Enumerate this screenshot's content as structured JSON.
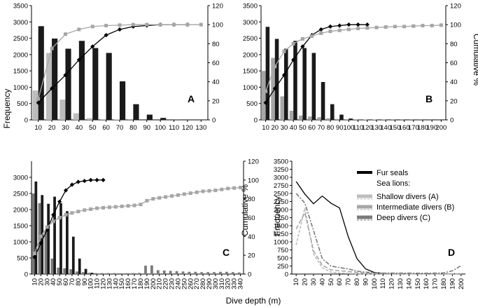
{
  "figure": {
    "shared_xlabel": "Dive depth (m)",
    "shared_ylabel_left": "Frequency",
    "shared_ylabel_right": "Cumulative %"
  },
  "legend": {
    "fur_seals": "Fur seals",
    "sea_lions": "Sea lions:",
    "shallow": "Shallow divers (A)",
    "intermediate": "Intermediate divers (B)",
    "deep": "Deep divers (C)"
  },
  "colors": {
    "fur": "#1a1a1a",
    "sea_lion_A": "#bdbdbd",
    "sea_lion_B": "#a6a6a6",
    "sea_lion_C": "#7a7a7a",
    "fur_cum": "#000000",
    "sl_cum": "#a6a6a6"
  },
  "chart_data": [
    {
      "panel": "A",
      "type": "bar",
      "categories": [
        "10",
        "20",
        "30",
        "40",
        "50",
        "60",
        "70",
        "80",
        "90",
        "100",
        "110",
        "120",
        "130"
      ],
      "series": [
        {
          "name": "Fur seals",
          "values": [
            2870,
            2490,
            2180,
            2420,
            2200,
            2050,
            1180,
            480,
            160,
            60,
            10,
            0,
            0
          ]
        },
        {
          "name": "Sea lions (shallow divers A)",
          "values": [
            900,
            2050,
            620,
            200,
            50,
            20,
            10,
            5,
            0,
            0,
            0,
            0,
            0
          ]
        }
      ],
      "cumulative": [
        {
          "name": "Fur seals cumulative %",
          "values": [
            18,
            33,
            47,
            63,
            77,
            89,
            95,
            98,
            99,
            100,
            100,
            100
          ]
        },
        {
          "name": "Sea lions cumulative %",
          "values": [
            22,
            75,
            90,
            95,
            98,
            99,
            99.5,
            100,
            100,
            100,
            100,
            100,
            100
          ]
        }
      ],
      "ylim_left": [
        0,
        3500
      ],
      "yticks_left": [
        0,
        500,
        1000,
        1500,
        2000,
        2500,
        3000,
        3500
      ],
      "ylim_right": [
        0,
        120
      ],
      "yticks_right": [
        0,
        20,
        40,
        60,
        80,
        100,
        120
      ],
      "ylabel_left": "Frequency",
      "ylabel_right": ""
    },
    {
      "panel": "B",
      "type": "bar",
      "categories": [
        "10",
        "20",
        "30",
        "40",
        "50",
        "60",
        "70",
        "80",
        "90",
        "100",
        "110",
        "120",
        "130",
        "140",
        "150",
        "160",
        "170",
        "180",
        "190",
        "200"
      ],
      "series": [
        {
          "name": "Fur seals",
          "values": [
            2850,
            2480,
            2180,
            2420,
            2200,
            2050,
            1160,
            480,
            160,
            40,
            10,
            0,
            0,
            0,
            0,
            0,
            0,
            0,
            0,
            0
          ]
        },
        {
          "name": "Sea lions (intermediate divers B)",
          "values": [
            1500,
            1900,
            720,
            280,
            130,
            100,
            80,
            50,
            30,
            20,
            15,
            10,
            10,
            8,
            6,
            5,
            4,
            3,
            2,
            1
          ]
        }
      ],
      "cumulative": [
        {
          "name": "Fur seals cumulative %",
          "values": [
            18,
            33,
            47,
            63,
            77,
            89,
            95,
            98,
            99,
            100,
            100,
            100
          ]
        },
        {
          "name": "Sea lions cumulative %",
          "values": [
            30,
            56,
            72,
            80,
            85,
            88,
            91,
            93,
            94,
            95,
            96,
            96.5,
            97,
            97.5,
            98,
            98,
            98.5,
            99,
            99,
            99.5
          ]
        }
      ],
      "ylim_left": [
        0,
        3500
      ],
      "yticks_left": [
        0,
        500,
        1000,
        1500,
        2000,
        2500,
        3000,
        3500
      ],
      "ylim_right": [
        0,
        120
      ],
      "yticks_right": [
        0,
        20,
        40,
        60,
        80,
        100,
        120
      ],
      "ylabel_left": "",
      "ylabel_right": "Cumulative %"
    },
    {
      "panel": "C",
      "type": "bar",
      "categories": [
        "10",
        "20",
        "30",
        "40",
        "50",
        "60",
        "70",
        "80",
        "90",
        "100",
        "110",
        "120",
        "130",
        "140",
        "150",
        "160",
        "170",
        "180",
        "190",
        "200",
        "210",
        "220",
        "230",
        "240",
        "250",
        "260",
        "270",
        "280",
        "290",
        "300",
        "310",
        "320",
        "330",
        "340"
      ],
      "series": [
        {
          "name": "Fur seals",
          "values": [
            2870,
            2450,
            2180,
            2400,
            2200,
            1950,
            1160,
            480,
            160,
            40,
            10,
            5,
            0,
            0,
            0,
            0,
            0,
            0,
            0,
            0,
            0,
            0,
            0,
            0,
            0,
            0,
            0,
            0,
            0,
            0,
            0,
            0,
            0,
            0
          ]
        },
        {
          "name": "Sea lions (deep divers C)",
          "values": [
            2500,
            2200,
            1350,
            480,
            200,
            180,
            150,
            80,
            60,
            40,
            30,
            30,
            30,
            30,
            25,
            25,
            30,
            35,
            260,
            270,
            120,
            110,
            100,
            90,
            80,
            70,
            70,
            60,
            60,
            60,
            70,
            70,
            60,
            50
          ]
        }
      ],
      "cumulative": [
        {
          "name": "Fur seals cumulative %",
          "values": [
            18,
            33,
            47,
            63,
            77,
            89,
            95,
            98,
            99,
            100,
            100,
            100
          ]
        },
        {
          "name": "Sea lions cumulative %",
          "values": [
            22,
            40,
            50,
            56,
            60,
            63,
            65,
            66.5,
            68,
            69,
            70,
            70.5,
            71,
            71.5,
            72,
            72.5,
            73,
            74,
            78,
            80,
            81,
            82,
            83,
            84,
            85,
            86,
            87,
            88,
            88.5,
            89,
            90,
            91,
            91.5,
            92
          ]
        }
      ],
      "ylim_left": [
        0,
        3500
      ],
      "yticks_left": [
        0,
        500,
        1000,
        1500,
        2000,
        2500,
        3000
      ],
      "ylim_right": [
        0,
        120
      ],
      "yticks_right": [
        0,
        20,
        40,
        60,
        80,
        100,
        120
      ],
      "ylabel_left": "",
      "ylabel_right": "Cumulative %"
    },
    {
      "panel": "D",
      "type": "line",
      "x": [
        "10",
        "20",
        "30",
        "40",
        "50",
        "60",
        "70",
        "80",
        "90",
        "100",
        "110",
        "120",
        "130",
        "140",
        "150",
        "160",
        "170",
        "180",
        "190",
        "200"
      ],
      "series": [
        {
          "name": "Fur seals",
          "style": "solid-black",
          "values": [
            2870,
            2480,
            2180,
            2420,
            2200,
            2050,
            1160,
            480,
            160,
            50,
            20,
            10,
            5,
            5,
            5,
            5,
            5,
            5,
            5,
            5
          ]
        },
        {
          "name": "Shallow divers (A)",
          "style": "light-dashed",
          "values": [
            900,
            2050,
            620,
            200,
            60,
            30,
            20,
            10,
            10,
            10,
            10,
            10,
            10,
            10,
            10,
            10,
            10,
            10,
            10,
            10
          ]
        },
        {
          "name": "Intermediate divers (B)",
          "style": "medium-dashed",
          "values": [
            1400,
            1900,
            720,
            280,
            130,
            100,
            80,
            50,
            30,
            20,
            15,
            10,
            10,
            8,
            6,
            5,
            4,
            3,
            2,
            1
          ]
        },
        {
          "name": "Deep divers (C)",
          "style": "dark-dash-dot",
          "values": [
            2500,
            2200,
            1350,
            480,
            250,
            200,
            160,
            90,
            60,
            40,
            30,
            30,
            30,
            30,
            25,
            25,
            30,
            35,
            100,
            260
          ]
        }
      ],
      "ylim": [
        0,
        3500
      ],
      "yticks": [
        0,
        250,
        500,
        750,
        1000,
        1250,
        1500,
        1750,
        2000,
        2250,
        2500,
        2750,
        3000,
        3250,
        3500
      ],
      "ylabel": "Frequency"
    }
  ]
}
